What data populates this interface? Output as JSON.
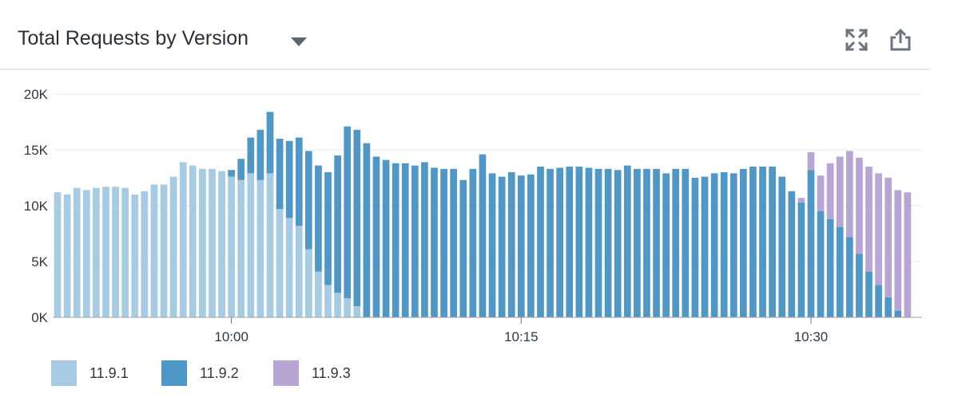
{
  "widget": {
    "title": "Total Requests by Version",
    "icons": {
      "dropdown": "chevron-down-icon",
      "expand": "expand-icon",
      "share": "share-icon"
    }
  },
  "chart_data": {
    "type": "bar",
    "stacked": true,
    "title": "Total Requests by Version",
    "xlabel": "",
    "ylabel": "",
    "ylim": [
      0,
      20000
    ],
    "y_ticks": [
      "0K",
      "5K",
      "10K",
      "15K",
      "20K"
    ],
    "y_tick_values": [
      0,
      5000,
      10000,
      15000,
      20000
    ],
    "x_ticks": [
      "10:00",
      "10:15",
      "10:30"
    ],
    "x_tick_positions": [
      18.5,
      48.5,
      78.5
    ],
    "grid": true,
    "legend_position": "bottom-left",
    "series": [
      {
        "name": "11.9.1",
        "color": "#a6cbe3",
        "values": [
          11200,
          11000,
          11600,
          11400,
          11600,
          11700,
          11700,
          11600,
          11000,
          11300,
          11900,
          11900,
          12600,
          13900,
          13600,
          13300,
          13300,
          13100,
          12600,
          12300,
          12900,
          12300,
          12900,
          9700,
          8900,
          8200,
          6100,
          4100,
          2900,
          2200,
          1700,
          1000,
          0,
          0,
          0,
          0,
          0,
          0,
          0,
          0,
          0,
          0,
          0,
          0,
          0,
          0,
          0,
          0,
          0,
          0,
          0,
          0,
          0,
          0,
          0,
          0,
          0,
          0,
          0,
          0,
          0,
          0,
          0,
          0,
          0,
          0,
          0,
          0,
          0,
          0,
          0,
          0,
          0,
          0,
          0,
          0,
          0,
          0,
          0,
          0,
          0,
          0,
          0,
          0,
          0,
          0,
          0,
          0,
          0,
          0
        ]
      },
      {
        "name": "11.9.2",
        "color": "#4f97c6",
        "values": [
          0,
          0,
          0,
          0,
          0,
          0,
          0,
          0,
          0,
          0,
          0,
          0,
          0,
          0,
          0,
          0,
          0,
          0,
          600,
          1900,
          3200,
          4500,
          5500,
          6300,
          6900,
          7900,
          8800,
          9500,
          10100,
          12300,
          15400,
          15800,
          15600,
          14400,
          14100,
          13800,
          13800,
          13600,
          13900,
          13400,
          13300,
          13300,
          12300,
          13300,
          14600,
          12900,
          12600,
          13000,
          12700,
          12800,
          13500,
          13300,
          13400,
          13500,
          13500,
          13400,
          13300,
          13300,
          13200,
          13600,
          13300,
          13300,
          13300,
          12900,
          13300,
          13300,
          12500,
          12600,
          12900,
          13000,
          12900,
          13300,
          13500,
          13500,
          13500,
          12600,
          11300,
          10300,
          13200,
          9500,
          8800,
          8100,
          7200,
          5700,
          4100,
          2900,
          1800,
          600,
          0
        ]
      },
      {
        "name": "11.9.3",
        "color": "#b7a6d3",
        "values": [
          0,
          0,
          0,
          0,
          0,
          0,
          0,
          0,
          0,
          0,
          0,
          0,
          0,
          0,
          0,
          0,
          0,
          0,
          0,
          0,
          0,
          0,
          0,
          0,
          0,
          0,
          0,
          0,
          0,
          0,
          0,
          0,
          0,
          0,
          0,
          0,
          0,
          0,
          0,
          0,
          0,
          0,
          0,
          0,
          0,
          0,
          0,
          0,
          0,
          0,
          0,
          0,
          0,
          0,
          0,
          0,
          0,
          0,
          0,
          0,
          0,
          0,
          0,
          0,
          0,
          0,
          0,
          0,
          0,
          0,
          0,
          0,
          0,
          0,
          0,
          0,
          0,
          400,
          1600,
          3200,
          5000,
          6300,
          7700,
          8600,
          9400,
          10000,
          10700,
          10800,
          11200
        ]
      }
    ]
  }
}
